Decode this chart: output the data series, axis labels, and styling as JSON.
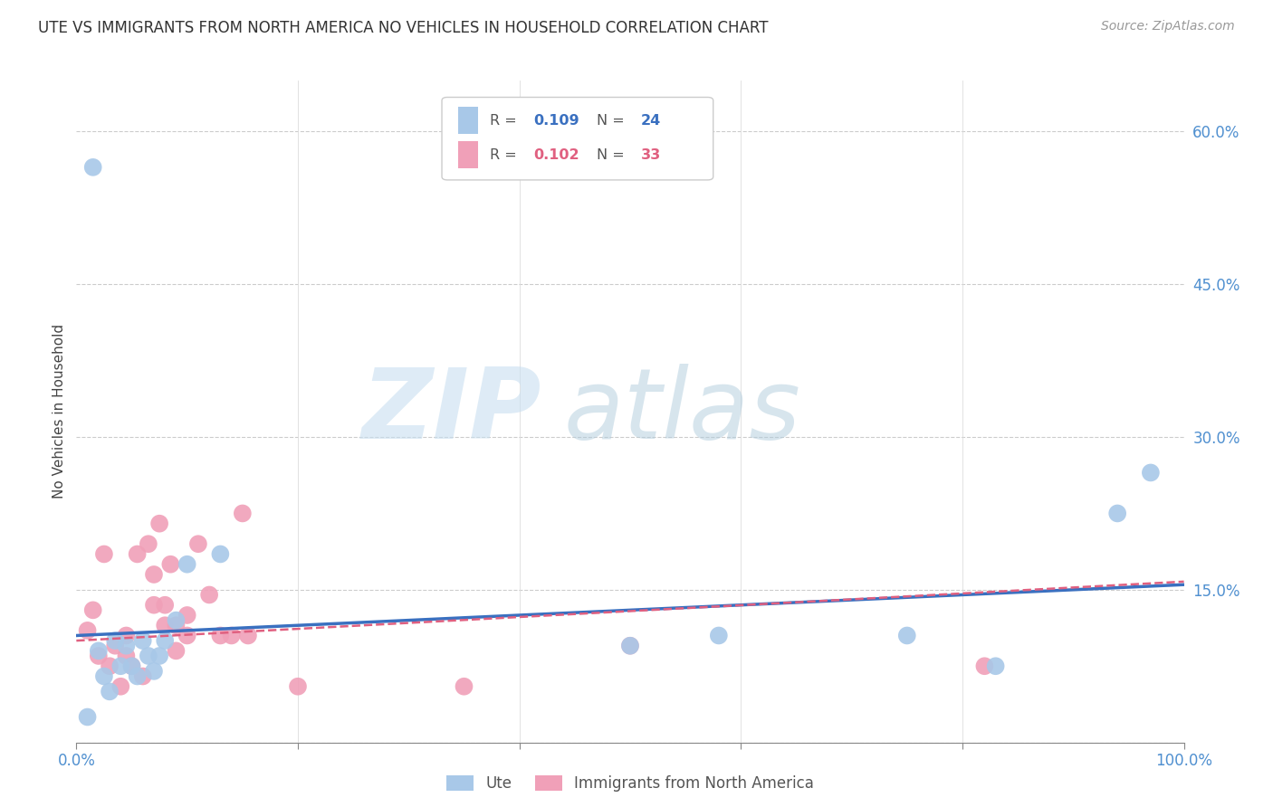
{
  "title": "UTE VS IMMIGRANTS FROM NORTH AMERICA NO VEHICLES IN HOUSEHOLD CORRELATION CHART",
  "source": "Source: ZipAtlas.com",
  "ylabel": "No Vehicles in Household",
  "R1": 0.109,
  "N1": 24,
  "R2": 0.102,
  "N2": 33,
  "color1": "#a8c8e8",
  "color2": "#f0a0b8",
  "line_color1": "#3a70c0",
  "line_color2": "#e06080",
  "tick_color": "#5090d0",
  "background": "#ffffff",
  "grid_color": "#cccccc",
  "legend_label1": "Ute",
  "legend_label2": "Immigrants from North America",
  "xlim": [
    0.0,
    1.0
  ],
  "ylim": [
    0.0,
    0.65
  ],
  "xticks": [
    0.0,
    0.2,
    0.4,
    0.6,
    0.8,
    1.0
  ],
  "yticks": [
    0.0,
    0.15,
    0.3,
    0.45,
    0.6
  ],
  "blue_x": [
    0.015,
    0.01,
    0.02,
    0.025,
    0.03,
    0.035,
    0.04,
    0.045,
    0.05,
    0.055,
    0.06,
    0.065,
    0.07,
    0.075,
    0.08,
    0.09,
    0.1,
    0.13,
    0.5,
    0.58,
    0.75,
    0.83,
    0.94,
    0.97
  ],
  "blue_y": [
    0.565,
    0.025,
    0.09,
    0.065,
    0.05,
    0.1,
    0.075,
    0.095,
    0.075,
    0.065,
    0.1,
    0.085,
    0.07,
    0.085,
    0.1,
    0.12,
    0.175,
    0.185,
    0.095,
    0.105,
    0.105,
    0.075,
    0.225,
    0.265
  ],
  "pink_x": [
    0.01,
    0.015,
    0.02,
    0.025,
    0.03,
    0.035,
    0.04,
    0.045,
    0.045,
    0.05,
    0.055,
    0.06,
    0.065,
    0.07,
    0.07,
    0.075,
    0.08,
    0.08,
    0.085,
    0.09,
    0.09,
    0.1,
    0.1,
    0.11,
    0.12,
    0.13,
    0.14,
    0.15,
    0.155,
    0.2,
    0.35,
    0.5,
    0.82
  ],
  "pink_y": [
    0.11,
    0.13,
    0.085,
    0.185,
    0.075,
    0.095,
    0.055,
    0.085,
    0.105,
    0.075,
    0.185,
    0.065,
    0.195,
    0.135,
    0.165,
    0.215,
    0.115,
    0.135,
    0.175,
    0.09,
    0.115,
    0.125,
    0.105,
    0.195,
    0.145,
    0.105,
    0.105,
    0.225,
    0.105,
    0.055,
    0.055,
    0.095,
    0.075
  ],
  "line1_x0": 0.0,
  "line1_x1": 1.0,
  "line1_y0": 0.105,
  "line1_y1": 0.155,
  "line2_x0": 0.0,
  "line2_x1": 1.0,
  "line2_y0": 0.1,
  "line2_y1": 0.158
}
